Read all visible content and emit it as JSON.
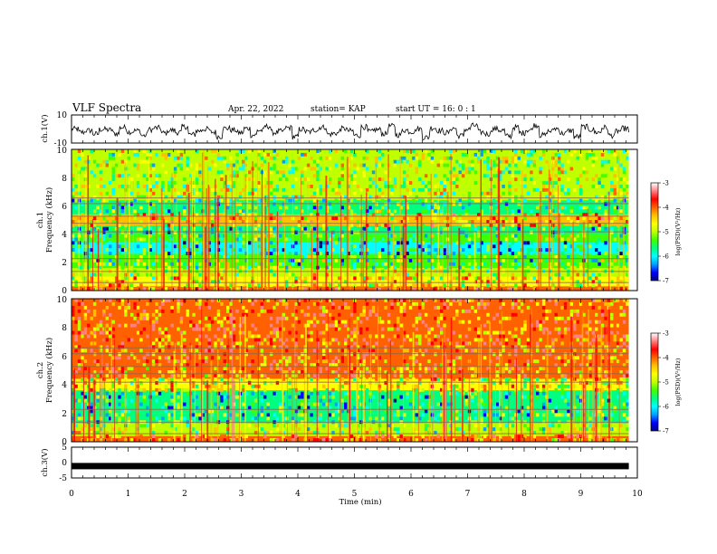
{
  "header": {
    "title": "VLF Spectra",
    "date": "Apr. 22, 2022",
    "station": "station= KAP",
    "start": "start  UT =   16: 0  : 1"
  },
  "chart_data": [
    {
      "type": "line",
      "id": "ch1-waveform",
      "ylabel": "ch.1(V)",
      "ylim": [
        -10,
        10
      ],
      "yticks": [
        "10",
        "-10"
      ],
      "xlim": [
        0,
        10
      ],
      "x_extent": 9.85,
      "description_of_signal": "noise",
      "samples": [
        1.5,
        -0.8,
        0.4,
        -2.1,
        1.2,
        0.9,
        -1.8,
        2.6,
        -0.5,
        0.3,
        -3.2,
        1.1,
        2.2,
        -1.4,
        0.6,
        -0.9,
        3.1,
        -2.5,
        0.2,
        1.4,
        -0.7,
        -3.8,
        2.0,
        0.8,
        -1.2,
        1.9,
        -2.8,
        0.5,
        3.4,
        -1.0,
        -0.2,
        2.4,
        -4.1,
        1.3,
        -0.6,
        0.9,
        2.8,
        -2.2,
        -1.5,
        1.7,
        0.1,
        -3.0,
        2.9,
        -0.4,
        1.0,
        -1.9,
        3.6,
        -2.7,
        0.7,
        -0.3,
        1.6,
        -4.5,
        2.3,
        0.4,
        -1.1,
        2.0,
        -3.3,
        1.2,
        3.9,
        -0.8,
        -2.0,
        1.5,
        0.6,
        -3.6,
        2.7,
        -1.3,
        0.8,
        4.2,
        -2.9,
        -0.1,
        1.8,
        -1.6,
        0.3,
        -4.0,
        3.0,
        1.1,
        -0.9,
        2.5,
        -3.1,
        0.0,
        1.9,
        -2.4
      ]
    },
    {
      "type": "heatmap",
      "id": "ch1-spectrogram",
      "ylabel": "ch.1\nFrequency  (kHz)",
      "ylim": [
        0,
        10
      ],
      "yticks": [
        0,
        2,
        4,
        6,
        8,
        10
      ],
      "xlim": [
        0,
        10
      ],
      "x_extent": 9.85,
      "colorbar": {
        "range": [
          -7,
          -3
        ],
        "ticks": [
          -3,
          -4,
          -5,
          -6,
          -7
        ],
        "label": "log(PSD)(V²/Hz)"
      },
      "bands_khz": [
        {
          "from": 0.0,
          "to": 0.3,
          "level": -3.8
        },
        {
          "from": 0.3,
          "to": 1.0,
          "level": -4.6
        },
        {
          "from": 1.0,
          "to": 1.6,
          "level": -4.9
        },
        {
          "from": 1.6,
          "to": 2.6,
          "level": -5.3
        },
        {
          "from": 2.6,
          "to": 3.4,
          "level": -5.8
        },
        {
          "from": 3.4,
          "to": 4.0,
          "level": -5.2
        },
        {
          "from": 4.0,
          "to": 4.6,
          "level": -5.6
        },
        {
          "from": 4.6,
          "to": 5.4,
          "level": -4.3
        },
        {
          "from": 5.4,
          "to": 6.4,
          "level": -5.4
        },
        {
          "from": 6.4,
          "to": 7.2,
          "level": -4.9
        },
        {
          "from": 7.2,
          "to": 10.0,
          "level": -5.0
        }
      ]
    },
    {
      "type": "heatmap",
      "id": "ch2-spectrogram",
      "ylabel": "ch.2\nFrequency  (kHz)",
      "ylim": [
        0,
        10
      ],
      "yticks": [
        0,
        2,
        4,
        6,
        8,
        10
      ],
      "xlim": [
        0,
        10
      ],
      "x_extent": 9.85,
      "colorbar": {
        "range": [
          -7,
          -3
        ],
        "ticks": [
          -3,
          -4,
          -5,
          -6,
          -7
        ],
        "label": "log(PSD)(V²/Hz)"
      },
      "bands_khz": [
        {
          "from": 0.0,
          "to": 0.4,
          "level": -4.0
        },
        {
          "from": 0.4,
          "to": 1.3,
          "level": -5.0
        },
        {
          "from": 1.3,
          "to": 2.0,
          "level": -5.4
        },
        {
          "from": 2.0,
          "to": 3.6,
          "level": -5.6
        },
        {
          "from": 3.6,
          "to": 4.4,
          "level": -4.6
        },
        {
          "from": 4.4,
          "to": 5.6,
          "level": -4.0
        },
        {
          "from": 5.6,
          "to": 10.0,
          "level": -3.9
        }
      ]
    },
    {
      "type": "line",
      "id": "ch3-signal",
      "ylabel": "ch.3(V)",
      "ylim": [
        -5,
        5
      ],
      "yticks": [
        "5",
        "0",
        "-5"
      ],
      "xlim": [
        0,
        10
      ],
      "x_extent": 9.85,
      "level_v": -1.0
    }
  ],
  "x_axis": {
    "label": "Time  (min)",
    "ticks": [
      "0",
      "1",
      "2",
      "3",
      "4",
      "5",
      "6",
      "7",
      "8",
      "9",
      "10"
    ]
  },
  "colorscale": [
    "#000080",
    "#0000ff",
    "#00a0ff",
    "#00ffff",
    "#00ff80",
    "#40ff00",
    "#c0ff00",
    "#ffff00",
    "#ffc000",
    "#ff6000",
    "#ff0000",
    "#ff8080",
    "#ffffff"
  ]
}
